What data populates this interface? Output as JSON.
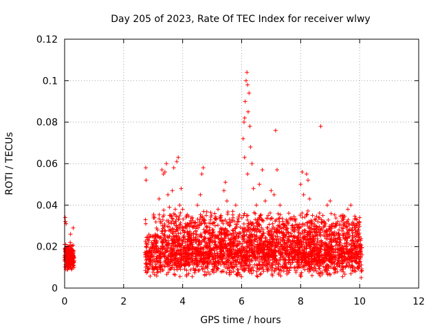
{
  "chart_data": {
    "type": "scatter",
    "title": "Day 205 of 2023, Rate Of TEC Index for receiver wlwy",
    "xlabel": "GPS time / hours",
    "ylabel": "ROTI / TECUs",
    "xlim": [
      0,
      12
    ],
    "ylim": [
      0,
      0.12
    ],
    "xticks": [
      0,
      2,
      4,
      6,
      8,
      10,
      12
    ],
    "yticks": [
      0,
      0.02,
      0.04,
      0.06,
      0.08,
      0.1,
      0.12
    ],
    "xtick_labels": [
      "0",
      "2",
      "4",
      "6",
      "8",
      "10",
      "12"
    ],
    "ytick_labels": [
      "0",
      "0.02",
      "0.04",
      "0.06",
      "0.08",
      "0.1",
      "0.12"
    ],
    "grid": true,
    "marker": "plus",
    "color": "#ff0000",
    "series": [
      {
        "name": "",
        "points": [
          [
            0.02,
            0.034
          ],
          [
            0.03,
            0.032
          ],
          [
            0.05,
            0.031
          ],
          [
            0.04,
            0.021
          ],
          [
            0.06,
            0.019
          ],
          [
            0.08,
            0.017
          ],
          [
            0.1,
            0.015
          ],
          [
            0.12,
            0.013
          ],
          [
            0.15,
            0.012
          ],
          [
            0.18,
            0.011
          ],
          [
            0.2,
            0.01
          ],
          [
            0.22,
            0.012
          ],
          [
            0.25,
            0.014
          ],
          [
            0.27,
            0.016
          ],
          [
            0.3,
            0.018
          ],
          [
            0.06,
            0.011
          ],
          [
            0.09,
            0.009
          ],
          [
            0.13,
            0.01
          ],
          [
            0.17,
            0.014
          ],
          [
            0.21,
            0.016
          ],
          [
            0.24,
            0.009
          ],
          [
            0.28,
            0.011
          ],
          [
            0.3,
            0.013
          ],
          [
            0.03,
            0.014
          ],
          [
            0.07,
            0.016
          ],
          [
            0.11,
            0.018
          ],
          [
            0.16,
            0.02
          ],
          [
            0.19,
            0.022
          ],
          [
            0.23,
            0.019
          ],
          [
            0.26,
            0.015
          ],
          [
            0.29,
            0.029
          ],
          [
            0.2,
            0.026
          ],
          [
            0.08,
            0.012
          ],
          [
            0.14,
            0.016
          ],
          [
            0.27,
            0.01
          ],
          [
            2.75,
            0.058
          ],
          [
            2.76,
            0.052
          ],
          [
            2.74,
            0.033
          ],
          [
            2.75,
            0.031
          ],
          [
            2.78,
            0.02
          ],
          [
            2.8,
            0.015
          ],
          [
            2.85,
            0.012
          ],
          [
            2.9,
            0.018
          ],
          [
            2.95,
            0.022
          ],
          [
            3.0,
            0.025
          ],
          [
            3.05,
            0.017
          ],
          [
            3.1,
            0.02
          ],
          [
            3.15,
            0.028
          ],
          [
            3.2,
            0.043
          ],
          [
            3.25,
            0.032
          ],
          [
            3.3,
            0.057
          ],
          [
            3.35,
            0.055
          ],
          [
            3.4,
            0.056
          ],
          [
            3.45,
            0.06
          ],
          [
            3.5,
            0.045
          ],
          [
            3.55,
            0.039
          ],
          [
            3.6,
            0.035
          ],
          [
            3.65,
            0.047
          ],
          [
            3.7,
            0.058
          ],
          [
            3.75,
            0.038
          ],
          [
            3.8,
            0.061
          ],
          [
            3.85,
            0.063
          ],
          [
            3.9,
            0.04
          ],
          [
            3.95,
            0.048
          ],
          [
            4.0,
            0.038
          ],
          [
            4.1,
            0.031
          ],
          [
            4.2,
            0.025
          ],
          [
            4.3,
            0.022
          ],
          [
            4.4,
            0.03
          ],
          [
            4.5,
            0.04
          ],
          [
            4.6,
            0.045
          ],
          [
            4.65,
            0.055
          ],
          [
            4.7,
            0.058
          ],
          [
            4.8,
            0.035
          ],
          [
            4.9,
            0.026
          ],
          [
            5.0,
            0.022
          ],
          [
            5.1,
            0.03
          ],
          [
            5.2,
            0.038
          ],
          [
            5.3,
            0.035
          ],
          [
            5.4,
            0.047
          ],
          [
            5.45,
            0.051
          ],
          [
            5.5,
            0.042
          ],
          [
            5.6,
            0.03
          ],
          [
            5.7,
            0.037
          ],
          [
            5.8,
            0.04
          ],
          [
            5.9,
            0.032
          ],
          [
            6.05,
            0.072
          ],
          [
            6.08,
            0.08
          ],
          [
            6.1,
            0.082
          ],
          [
            6.12,
            0.09
          ],
          [
            6.15,
            0.1
          ],
          [
            6.18,
            0.104
          ],
          [
            6.2,
            0.098
          ],
          [
            6.22,
            0.085
          ],
          [
            6.25,
            0.094
          ],
          [
            6.28,
            0.078
          ],
          [
            6.3,
            0.068
          ],
          [
            6.35,
            0.06
          ],
          [
            6.1,
            0.063
          ],
          [
            6.2,
            0.055
          ],
          [
            6.4,
            0.048
          ],
          [
            6.5,
            0.04
          ],
          [
            6.6,
            0.05
          ],
          [
            6.7,
            0.057
          ],
          [
            6.8,
            0.042
          ],
          [
            6.9,
            0.035
          ],
          [
            7.0,
            0.047
          ],
          [
            7.1,
            0.045
          ],
          [
            7.15,
            0.076
          ],
          [
            7.2,
            0.057
          ],
          [
            7.3,
            0.04
          ],
          [
            7.4,
            0.032
          ],
          [
            7.5,
            0.028
          ],
          [
            7.6,
            0.025
          ],
          [
            7.7,
            0.03
          ],
          [
            7.8,
            0.022
          ],
          [
            7.9,
            0.018
          ],
          [
            8.0,
            0.05
          ],
          [
            8.05,
            0.056
          ],
          [
            8.1,
            0.045
          ],
          [
            8.2,
            0.055
          ],
          [
            8.25,
            0.052
          ],
          [
            8.3,
            0.043
          ],
          [
            8.4,
            0.035
          ],
          [
            8.5,
            0.03
          ],
          [
            8.6,
            0.028
          ],
          [
            8.68,
            0.078
          ],
          [
            8.7,
            0.033
          ],
          [
            8.8,
            0.027
          ],
          [
            8.9,
            0.04
          ],
          [
            9.0,
            0.042
          ],
          [
            9.1,
            0.03
          ],
          [
            9.2,
            0.022
          ],
          [
            9.3,
            0.028
          ],
          [
            9.4,
            0.035
          ],
          [
            9.5,
            0.03
          ],
          [
            9.6,
            0.038
          ],
          [
            9.7,
            0.04
          ],
          [
            9.8,
            0.031
          ],
          [
            9.9,
            0.033
          ],
          [
            10.0,
            0.034
          ],
          [
            10.05,
            0.005
          ],
          [
            10.02,
            0.014
          ]
        ],
        "bands": [
          {
            "x_from": 0.0,
            "x_to": 0.32,
            "y_from": 0.008,
            "y_to": 0.022,
            "count": 220
          },
          {
            "x_from": 2.72,
            "x_to": 10.08,
            "y_from": 0.005,
            "y_to": 0.028,
            "count": 2400
          },
          {
            "x_from": 3.0,
            "x_to": 10.0,
            "y_from": 0.02,
            "y_to": 0.038,
            "count": 700
          }
        ]
      }
    ]
  }
}
